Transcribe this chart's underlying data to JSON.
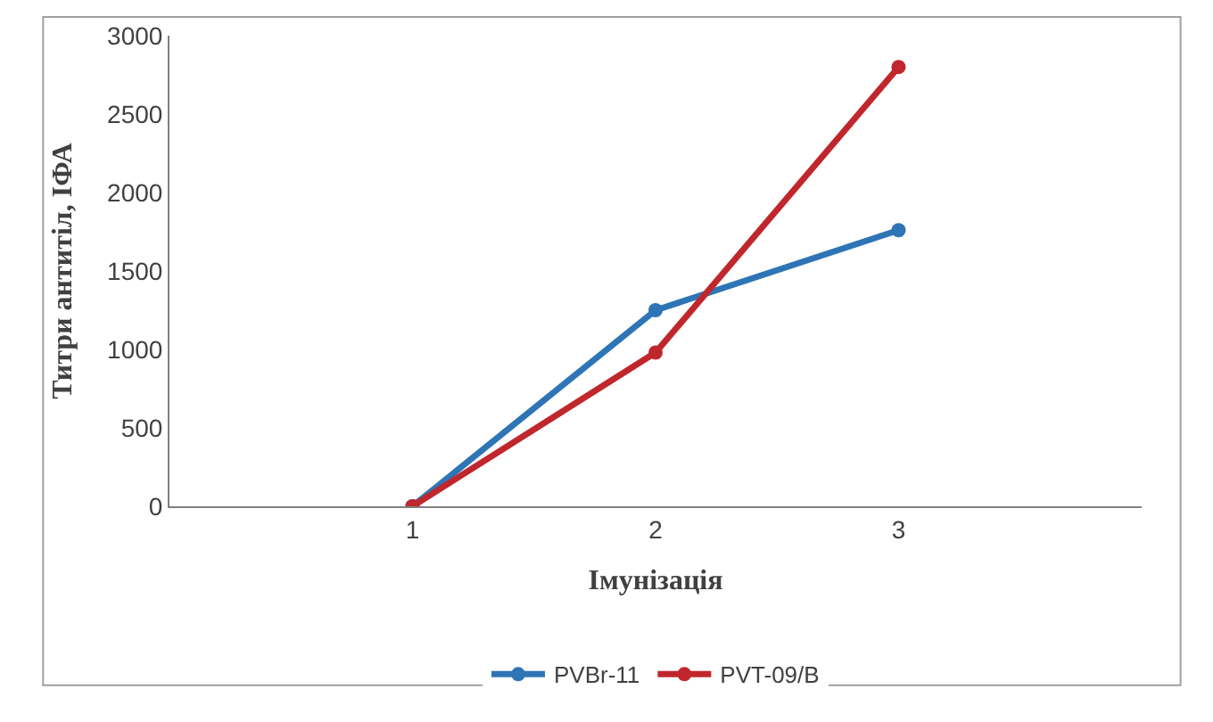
{
  "chart_data": {
    "type": "line",
    "xlabel": "Імунізація",
    "ylabel": "Титри антитіл, ІФА",
    "categories": [
      "1",
      "2",
      "3"
    ],
    "series": [
      {
        "name": "PVBr-11",
        "color": "#2e75b6",
        "values": [
          0,
          1250,
          1760
        ]
      },
      {
        "name": "PVT-09/B",
        "color": "#c0272d",
        "values": [
          0,
          980,
          2800
        ]
      }
    ],
    "ylim": [
      0,
      3000
    ],
    "yticks": [
      0,
      500,
      1000,
      1500,
      2000,
      2500,
      3000
    ],
    "legend": "bottom",
    "marker": "circle",
    "line_style": "solid"
  }
}
